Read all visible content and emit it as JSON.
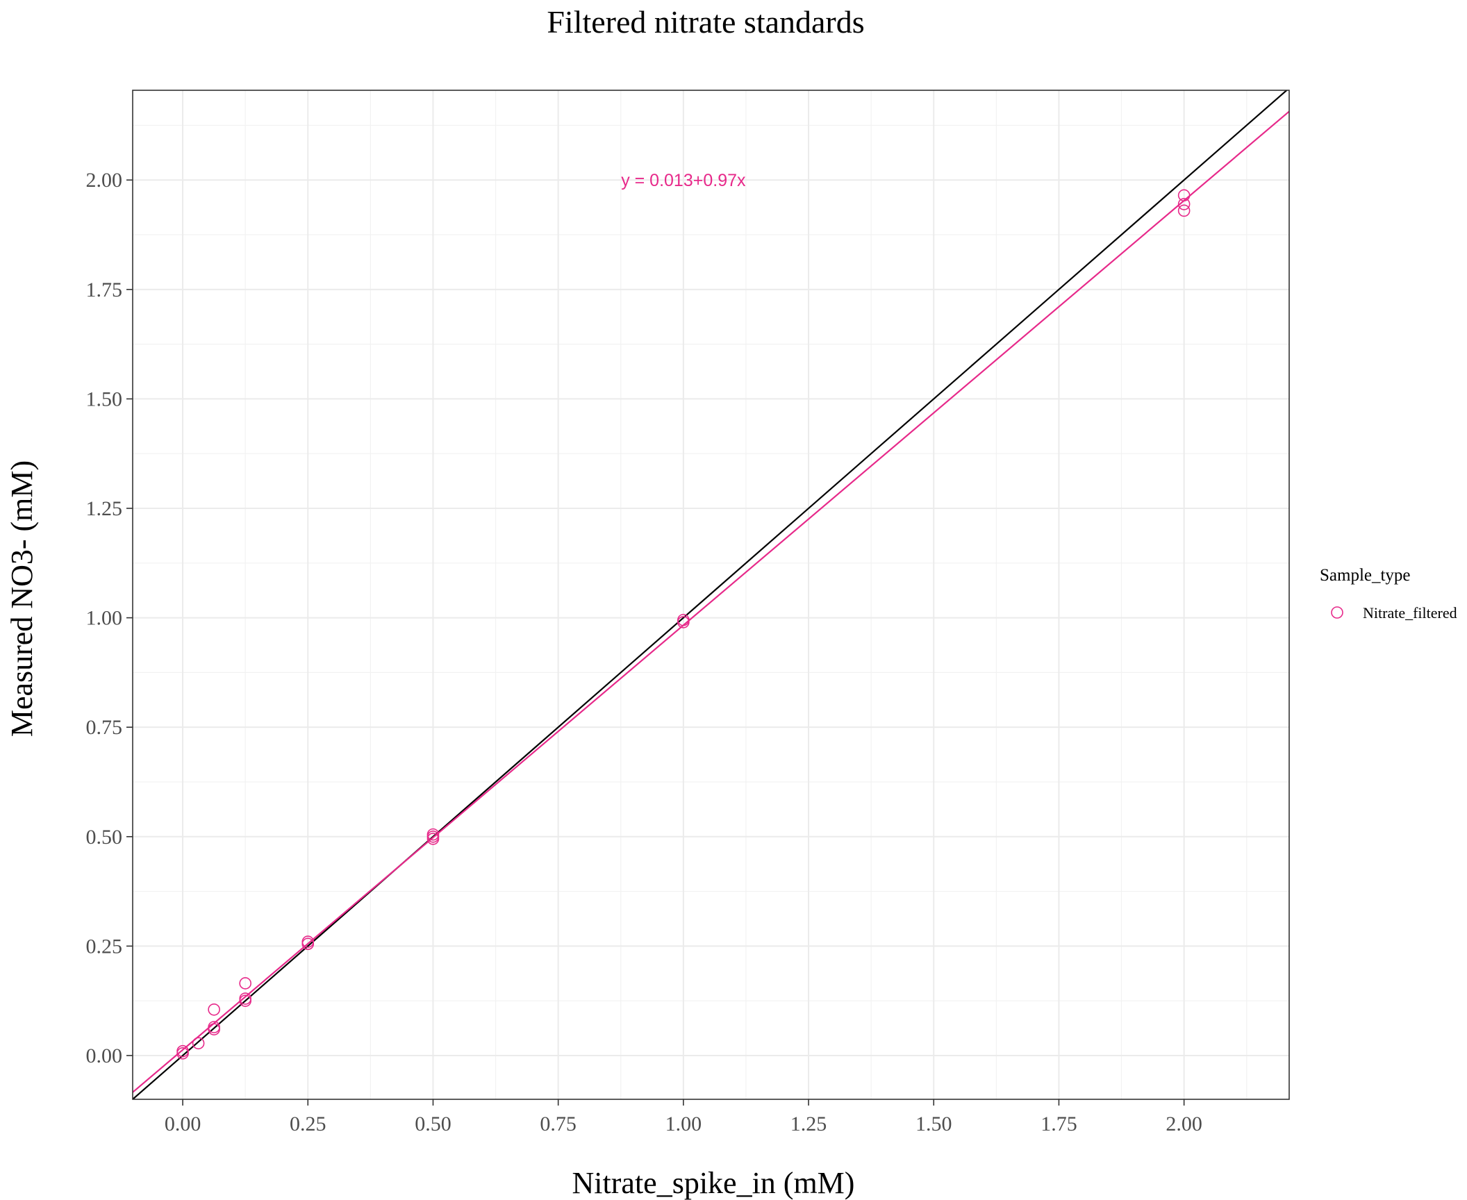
{
  "chart_data": {
    "type": "scatter",
    "title": "Filtered nitrate standards",
    "xlabel": "Nitrate_spike_in (mM)",
    "ylabel": "Measured NO3- (mM)",
    "xlim": [
      -0.1,
      2.21
    ],
    "ylim": [
      -0.1,
      2.205
    ],
    "x_ticks": [
      0,
      0.25,
      0.5,
      0.75,
      1,
      1.25,
      1.5,
      1.75,
      2
    ],
    "x_tick_labels": [
      "0.00",
      "0.25",
      "0.50",
      "0.75",
      "1.00",
      "1.25",
      "1.50",
      "1.75",
      "2.00"
    ],
    "y_ticks": [
      0,
      0.25,
      0.5,
      0.75,
      1,
      1.25,
      1.5,
      1.75,
      2
    ],
    "y_tick_labels": [
      "0.00",
      "0.25",
      "0.50",
      "0.75",
      "1.00",
      "1.25",
      "1.50",
      "1.75",
      "2.00"
    ],
    "grid": true,
    "legend": {
      "title": "Sample_type",
      "placement": "right",
      "entries": [
        "Nitrate_filtered"
      ]
    },
    "series": [
      {
        "name": "Nitrate_filtered",
        "color": "#e7298a",
        "marker": "open-circle",
        "points": [
          {
            "x": 0.0,
            "y": 0.01
          },
          {
            "x": 0.0,
            "y": 0.005
          },
          {
            "x": 0.03125,
            "y": 0.028
          },
          {
            "x": 0.0625,
            "y": 0.105
          },
          {
            "x": 0.0625,
            "y": 0.065
          },
          {
            "x": 0.0625,
            "y": 0.06
          },
          {
            "x": 0.125,
            "y": 0.165
          },
          {
            "x": 0.125,
            "y": 0.13
          },
          {
            "x": 0.125,
            "y": 0.125
          },
          {
            "x": 0.25,
            "y": 0.26
          },
          {
            "x": 0.25,
            "y": 0.255
          },
          {
            "x": 0.5,
            "y": 0.505
          },
          {
            "x": 0.5,
            "y": 0.5
          },
          {
            "x": 0.5,
            "y": 0.495
          },
          {
            "x": 1.0,
            "y": 0.995
          },
          {
            "x": 1.0,
            "y": 0.99
          },
          {
            "x": 2.0,
            "y": 1.965
          },
          {
            "x": 2.0,
            "y": 1.945
          },
          {
            "x": 2.0,
            "y": 1.93
          }
        ]
      }
    ],
    "lines": [
      {
        "kind": "identity",
        "intercept": 0,
        "slope": 1,
        "color": "#000000"
      },
      {
        "kind": "regression",
        "intercept": 0.013,
        "slope": 0.97,
        "color": "#e7298a"
      }
    ],
    "annotations": [
      {
        "text": "y = 0.013+0.97x",
        "x": 1.0,
        "y": 2.0,
        "color": "#e7298a"
      }
    ]
  }
}
